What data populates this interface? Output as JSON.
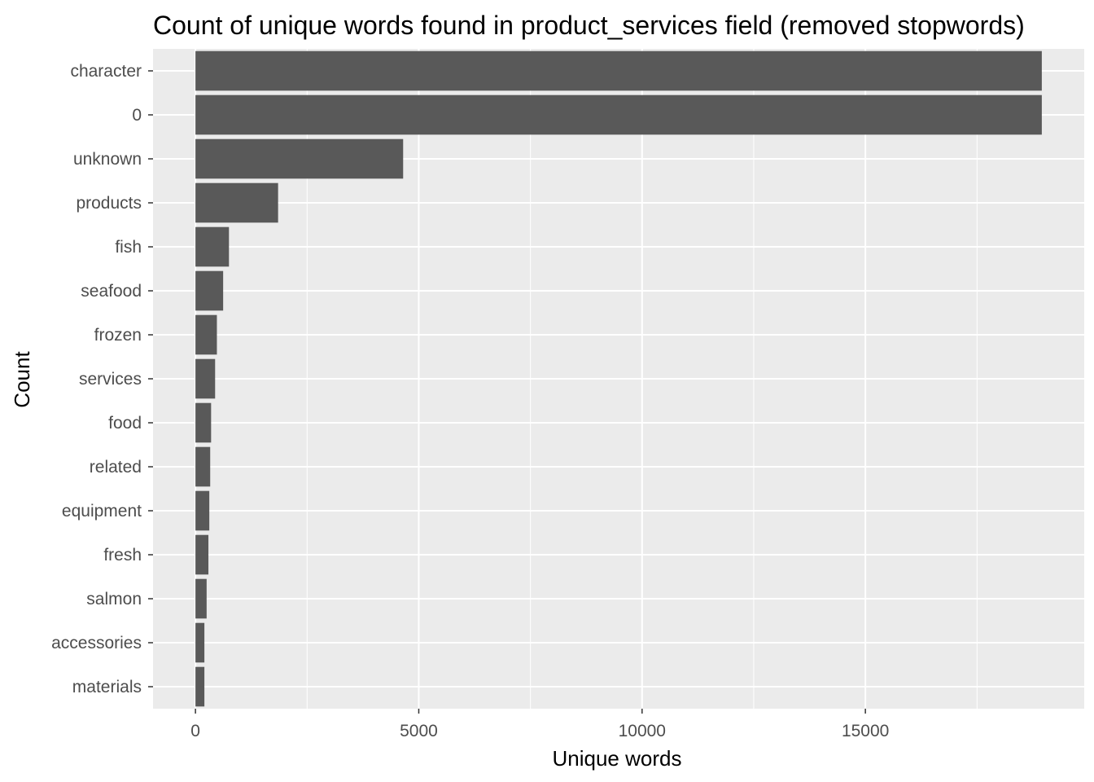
{
  "chart_data": {
    "type": "bar",
    "orientation": "horizontal",
    "title": "Count of unique words found in product_services field (removed stopwords)",
    "xlabel": "Unique words",
    "ylabel": "Count",
    "categories": [
      "character",
      "0",
      "unknown",
      "products",
      "fish",
      "seafood",
      "frozen",
      "services",
      "food",
      "related",
      "equipment",
      "fresh",
      "salmon",
      "accessories",
      "materials"
    ],
    "values": [
      18950,
      18950,
      4650,
      1850,
      750,
      620,
      480,
      440,
      350,
      330,
      310,
      290,
      250,
      200,
      200
    ],
    "xlim": [
      -950,
      19900
    ],
    "x_ticks": [
      0,
      5000,
      10000,
      15000
    ],
    "x_tick_labels": [
      "0",
      "5000",
      "10000",
      "15000"
    ],
    "grid": true,
    "colors": {
      "bar": "#595959",
      "panel": "#ebebeb",
      "grid": "#ffffff",
      "tick_text": "#4d4d4d",
      "tick_mark": "#333333"
    }
  }
}
